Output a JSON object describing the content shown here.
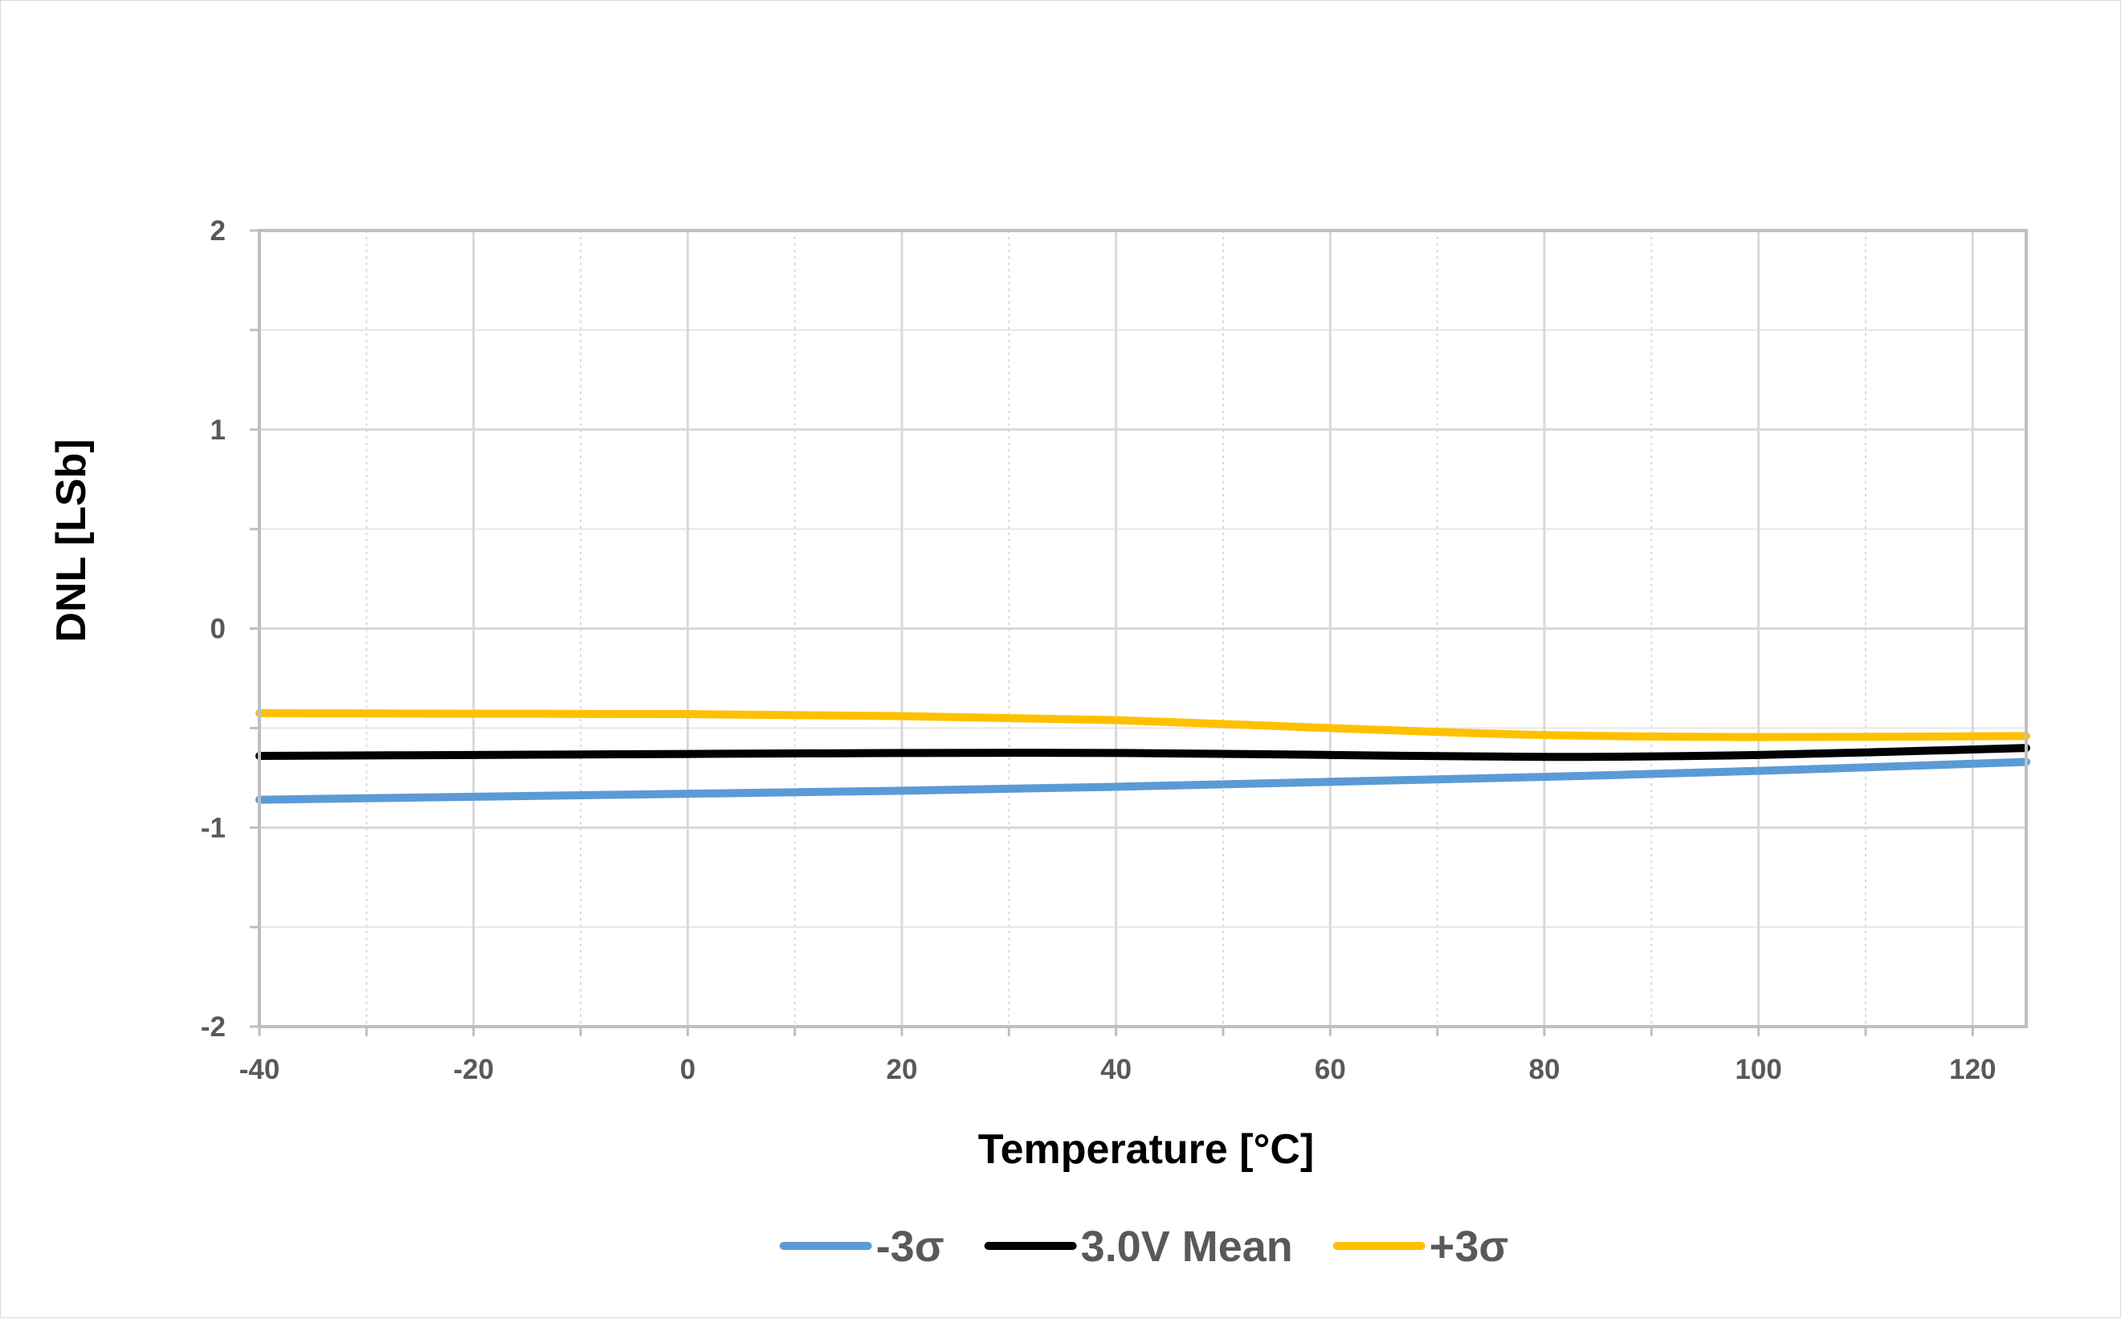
{
  "chart_data": {
    "type": "line",
    "title": "",
    "xlabel": "Temperature [°C]",
    "ylabel": "DNL [LSb]",
    "xlim": [
      -40,
      125
    ],
    "ylim": [
      -2,
      2
    ],
    "x_ticks": [
      -40,
      -20,
      0,
      20,
      40,
      60,
      80,
      100,
      120
    ],
    "y_ticks": [
      -2,
      -1,
      0,
      1,
      2
    ],
    "x_tick_labels": [
      "-40",
      "-20",
      "0",
      "20",
      "40",
      "60",
      "80",
      "100",
      "120"
    ],
    "y_tick_labels": [
      "-2",
      "-1",
      "0",
      "1",
      "2"
    ],
    "x_minor_step": 10,
    "y_minor_step": 0.5,
    "grid": true,
    "legend_position": "bottom",
    "series": [
      {
        "name": "-3σ",
        "color": "#5b9bd5",
        "x": [
          -40,
          -20,
          0,
          20,
          40,
          60,
          80,
          100,
          125
        ],
        "y": [
          -0.86,
          -0.845,
          -0.83,
          -0.815,
          -0.795,
          -0.77,
          -0.745,
          -0.715,
          -0.67
        ]
      },
      {
        "name": "3.0V Mean",
        "color": "#000000",
        "x": [
          -40,
          -20,
          0,
          20,
          40,
          60,
          80,
          100,
          125
        ],
        "y": [
          -0.64,
          -0.635,
          -0.63,
          -0.625,
          -0.625,
          -0.635,
          -0.645,
          -0.635,
          -0.6
        ]
      },
      {
        "name": "+3σ",
        "color": "#ffc000",
        "x": [
          -40,
          -20,
          0,
          20,
          40,
          60,
          80,
          100,
          125
        ],
        "y": [
          -0.425,
          -0.428,
          -0.43,
          -0.44,
          -0.46,
          -0.5,
          -0.535,
          -0.545,
          -0.54
        ]
      }
    ]
  }
}
